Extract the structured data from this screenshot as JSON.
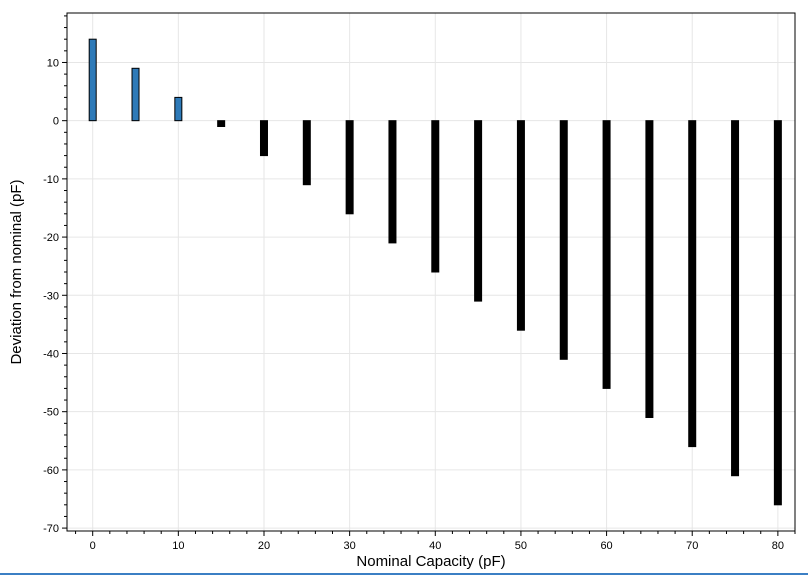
{
  "chart_data": {
    "type": "bar",
    "xlabel": "Nominal Capacity (pF)",
    "ylabel": "Deviation from nominal (pF)",
    "x": [
      0,
      5,
      10,
      15,
      20,
      25,
      30,
      35,
      40,
      45,
      50,
      55,
      60,
      65,
      70,
      75,
      80
    ],
    "values": [
      14,
      9,
      4,
      -1,
      -6,
      -11,
      -16,
      -21,
      -26,
      -31,
      -36,
      -41,
      -46,
      -51,
      -56,
      -61,
      -66
    ],
    "xlim": [
      -3,
      82
    ],
    "ylim": [
      -70.5,
      18.5
    ],
    "xticks": [
      0,
      10,
      20,
      30,
      40,
      50,
      60,
      70,
      80
    ],
    "yticks": [
      10,
      0,
      -10,
      -20,
      -30,
      -40,
      -50,
      -60,
      -70
    ],
    "grid": true,
    "colors": {
      "positive": "#2e7ab8",
      "negative": "#000000",
      "grid": "#e6e6e6",
      "axis": "#000000"
    }
  }
}
